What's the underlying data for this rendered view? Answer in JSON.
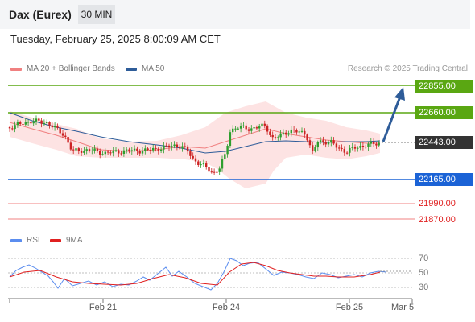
{
  "header": {
    "instrument": "Dax (Eurex)",
    "timeframe": "30 MIN"
  },
  "datetime": "Tuesday, February 25, 2025 8:00:09 AM CET",
  "legend": {
    "ma20": {
      "label": "MA 20 + Bollinger Bands",
      "color": "#f08080"
    },
    "ma50": {
      "label": "MA 50",
      "color": "#2e5c99"
    }
  },
  "credit": "Research © 2025 Trading Central",
  "levels": [
    {
      "value": "22855.00",
      "kind": "resistance",
      "color": "#5aa712"
    },
    {
      "value": "22660.00",
      "kind": "resistance",
      "color": "#5aa712"
    },
    {
      "value": "22443.00",
      "kind": "current",
      "color": "#333333"
    },
    {
      "value": "22165.00",
      "kind": "support",
      "color": "#1b63d6"
    },
    {
      "value": "21990.00",
      "kind": "support",
      "color": "#e02020"
    },
    {
      "value": "21870.00",
      "kind": "support",
      "color": "#e02020"
    }
  ],
  "rsi_legend": {
    "rsi": {
      "label": "RSI",
      "color": "#5b8def"
    },
    "ma": {
      "label": "9MA",
      "color": "#e02020"
    }
  },
  "rsi_levels": [
    "70",
    "50",
    "30"
  ],
  "x_axis": [
    "Feb 21",
    "Feb 24",
    "Feb 25",
    "Mar 5"
  ],
  "colors": {
    "up": "#2e9e2e",
    "down": "#cc2222",
    "band": "#fde3e3",
    "arrow": "#2e5c99"
  }
}
